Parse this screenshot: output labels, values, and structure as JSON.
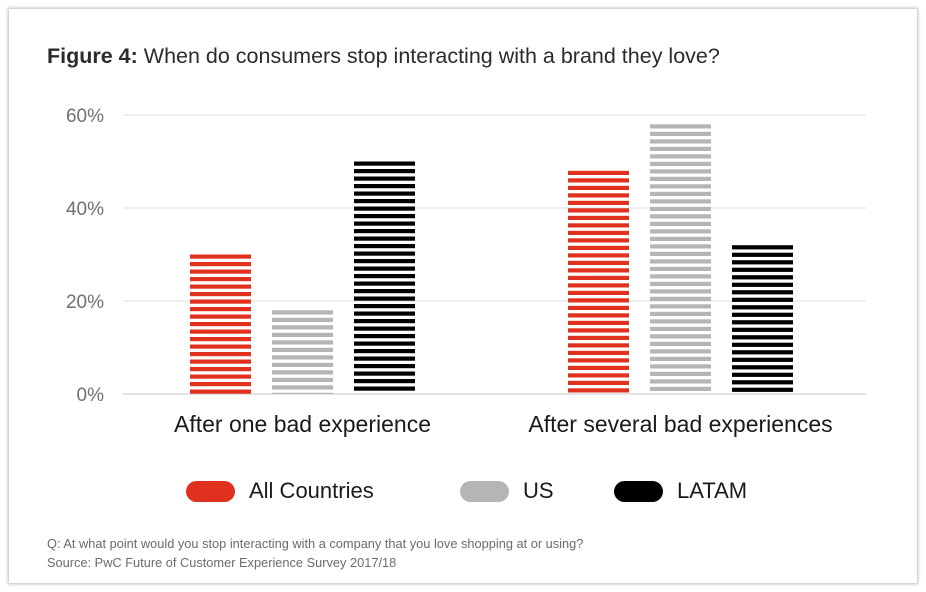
{
  "title": {
    "prefix": "Figure 4:",
    "text": "When do consumers stop interacting with a brand they love?"
  },
  "chart_data": {
    "type": "bar",
    "categories": [
      "After one bad experience",
      "After several bad experiences"
    ],
    "series": [
      {
        "name": "All Countries",
        "values": [
          30,
          48
        ],
        "color": "#e0301e"
      },
      {
        "name": "US",
        "values": [
          18,
          58
        ],
        "color": "#b5b5b5"
      },
      {
        "name": "LATAM",
        "values": [
          50,
          32
        ],
        "color": "#000000"
      }
    ],
    "ylim": [
      0,
      60
    ],
    "yticks": [
      "0%",
      "20%",
      "40%",
      "60%"
    ],
    "ytick_values": [
      0,
      20,
      40,
      60
    ],
    "grid": true,
    "legend": "bottom",
    "bar_style": "horizontal-stripes"
  },
  "legend": [
    {
      "label": "All Countries",
      "color": "#e0301e"
    },
    {
      "label": "US",
      "color": "#b5b5b5"
    },
    {
      "label": "LATAM",
      "color": "#000000"
    }
  ],
  "footnote": {
    "question": "Q: At what point would you stop interacting with a company that you love shopping at or using?",
    "source": "Source: PwC Future of Customer Experience Survey 2017/18"
  }
}
